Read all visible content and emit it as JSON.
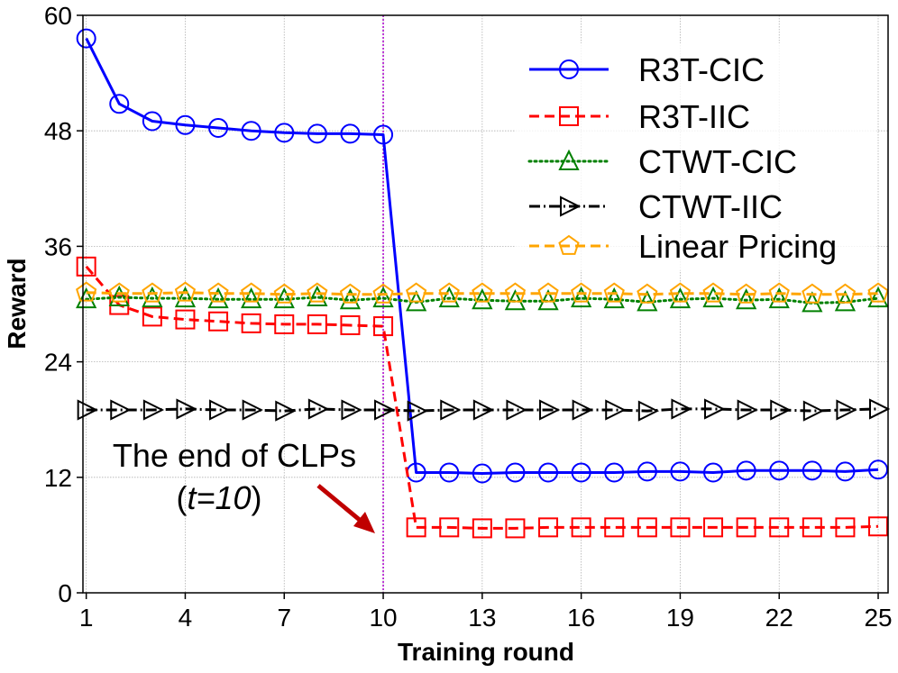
{
  "chart_data": {
    "type": "line",
    "title": "",
    "xlabel": "Training round",
    "ylabel": "Reward",
    "xlim": [
      0.9,
      25.3
    ],
    "ylim": [
      0,
      60
    ],
    "xticks": [
      1,
      4,
      7,
      10,
      13,
      16,
      19,
      22,
      25
    ],
    "yticks": [
      0,
      12,
      24,
      36,
      48,
      60
    ],
    "grid": true,
    "legend_position": "top-right",
    "x": [
      1,
      2,
      3,
      4,
      5,
      6,
      7,
      8,
      9,
      10,
      11,
      12,
      13,
      14,
      15,
      16,
      17,
      18,
      19,
      20,
      21,
      22,
      23,
      24,
      25
    ],
    "series": [
      {
        "name": "R3T-CIC",
        "color": "#0000ff",
        "marker": "circle",
        "line": "solid",
        "values": [
          57.6,
          50.8,
          49.0,
          48.6,
          48.3,
          48.0,
          47.8,
          47.7,
          47.7,
          47.6,
          12.5,
          12.5,
          12.4,
          12.5,
          12.5,
          12.5,
          12.5,
          12.6,
          12.6,
          12.5,
          12.7,
          12.7,
          12.7,
          12.6,
          12.8
        ]
      },
      {
        "name": "R3T-IIC",
        "color": "#ff0000",
        "marker": "square",
        "line": "dashed",
        "values": [
          33.9,
          29.9,
          28.7,
          28.4,
          28.2,
          28.0,
          27.9,
          27.9,
          27.8,
          27.7,
          6.8,
          6.8,
          6.7,
          6.7,
          6.8,
          6.8,
          6.8,
          6.8,
          6.8,
          6.8,
          6.8,
          6.8,
          6.8,
          6.8,
          6.9
        ]
      },
      {
        "name": "CTWT-CIC",
        "color": "#008000",
        "marker": "triangle-up",
        "line": "dotted",
        "values": [
          30.5,
          30.7,
          30.6,
          30.6,
          30.5,
          30.5,
          30.5,
          30.7,
          30.4,
          30.6,
          30.2,
          30.6,
          30.4,
          30.3,
          30.3,
          30.6,
          30.5,
          30.2,
          30.5,
          30.6,
          30.4,
          30.5,
          30.1,
          30.2,
          30.6
        ]
      },
      {
        "name": "CTWT-IIC",
        "color": "#000000",
        "marker": "triangle-right",
        "line": "dashdot",
        "values": [
          19.0,
          19.0,
          19.0,
          19.1,
          19.0,
          19.0,
          18.9,
          19.1,
          19.0,
          19.0,
          18.9,
          19.0,
          19.0,
          19.0,
          19.0,
          19.0,
          19.0,
          18.9,
          19.1,
          19.1,
          19.0,
          19.0,
          18.9,
          19.0,
          19.1
        ]
      },
      {
        "name": "Linear Pricing",
        "color": "#ffa500",
        "marker": "pentagon",
        "line": "dashed",
        "values": [
          31.2,
          31.1,
          31.1,
          31.2,
          31.1,
          31.1,
          31.0,
          31.1,
          31.0,
          31.0,
          31.1,
          31.1,
          31.1,
          31.1,
          31.1,
          31.1,
          31.1,
          31.0,
          31.1,
          31.1,
          31.0,
          31.1,
          31.0,
          31.0,
          31.1
        ]
      }
    ],
    "vline": {
      "x": 10,
      "color": "#aa00cc"
    },
    "annotation": {
      "line1": "The end of CLPs",
      "open": "(",
      "var": "t=10",
      "close": ")",
      "arrow_color": "#c00000"
    }
  }
}
